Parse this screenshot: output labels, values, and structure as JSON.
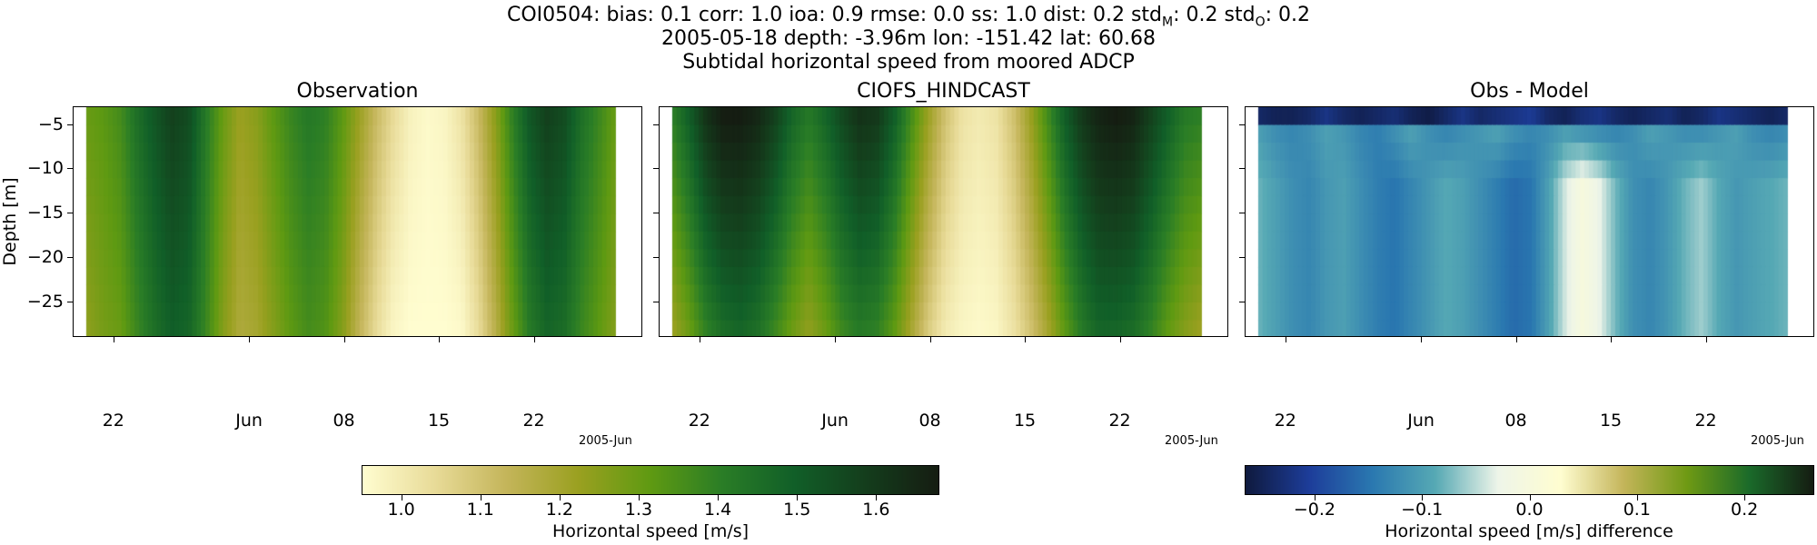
{
  "chart_data": {
    "type": "heatmap",
    "title_lines": [
      "COI0504: bias: 0.1  corr: 1.0  ioa: 0.9  rmse: 0.0  ss: 1.0  dist: 0.2  std",
      "2005-05-18 depth: -3.96m lon: -151.42 lat: 60.68",
      "Subtidal horizontal speed from moored ADCP"
    ],
    "title_subscripts": [
      "M",
      "O"
    ],
    "title_sub_values": [
      ": 0.2  std",
      ": 0.2"
    ],
    "ylabel": "Depth [m]",
    "xlim": [
      "2005-05-19",
      "2005-06-30"
    ],
    "ylim": [
      -29,
      -3
    ],
    "data_x_range": [
      "2005-05-20",
      "2005-06-28"
    ],
    "depth_bins": [
      -4,
      -6,
      -8,
      -10,
      -12,
      -14,
      -16,
      -18,
      -20,
      -22,
      -24,
      -26,
      -28
    ],
    "x_ticks": [
      {
        "date": "2005-05-22",
        "label": "22"
      },
      {
        "date": "2005-06-01",
        "label": "Jun"
      },
      {
        "date": "2005-06-08",
        "label": "08"
      },
      {
        "date": "2005-06-15",
        "label": "15"
      },
      {
        "date": "2005-06-22",
        "label": "22"
      }
    ],
    "x_offset_label": "2005-Jun",
    "y_ticks": [
      {
        "value": -5,
        "label": "−5"
      },
      {
        "value": -10,
        "label": "−10"
      },
      {
        "value": -15,
        "label": "−15"
      },
      {
        "value": -20,
        "label": "−20"
      },
      {
        "value": -25,
        "label": "−25"
      }
    ],
    "panels": [
      {
        "title": "Observation",
        "surface_speed": [
          1.3,
          1.32,
          1.36,
          1.45,
          1.52,
          1.58,
          1.55,
          1.42,
          1.3,
          1.22,
          1.25,
          1.32,
          1.38,
          1.42,
          1.4,
          1.32,
          1.22,
          1.12,
          1.04,
          0.98,
          0.96,
          0.97,
          1.02,
          1.12,
          1.25,
          1.4,
          1.52,
          1.58,
          1.55,
          1.45,
          1.38,
          1.3
        ],
        "deep_speed": [
          1.24,
          1.28,
          1.3,
          1.38,
          1.45,
          1.5,
          1.48,
          1.38,
          1.26,
          1.18,
          1.2,
          1.26,
          1.32,
          1.36,
          1.34,
          1.26,
          1.14,
          1.04,
          0.97,
          0.95,
          0.95,
          0.95,
          0.96,
          1.04,
          1.16,
          1.3,
          1.42,
          1.48,
          1.46,
          1.38,
          1.32,
          1.26
        ]
      },
      {
        "title": "CIOFS_HINDCAST",
        "surface_speed": [
          1.4,
          1.5,
          1.62,
          1.68,
          1.68,
          1.65,
          1.58,
          1.48,
          1.42,
          1.48,
          1.56,
          1.62,
          1.6,
          1.5,
          1.36,
          1.22,
          1.1,
          1.02,
          1.0,
          1.02,
          1.1,
          1.22,
          1.36,
          1.5,
          1.6,
          1.66,
          1.68,
          1.66,
          1.58,
          1.5,
          1.42,
          1.4
        ],
        "deep_speed": [
          1.22,
          1.3,
          1.4,
          1.46,
          1.48,
          1.45,
          1.38,
          1.3,
          1.24,
          1.3,
          1.38,
          1.42,
          1.4,
          1.32,
          1.2,
          1.08,
          1.0,
          0.97,
          0.96,
          0.97,
          1.02,
          1.1,
          1.2,
          1.32,
          1.42,
          1.48,
          1.48,
          1.46,
          1.4,
          1.32,
          1.26,
          1.22
        ]
      },
      {
        "title": "Obs - Model",
        "surface_diff": [
          -0.24,
          -0.25,
          -0.25,
          -0.24,
          -0.22,
          -0.24,
          -0.25,
          -0.24,
          -0.23,
          -0.25,
          -0.26,
          -0.24,
          -0.22,
          -0.24,
          -0.23,
          -0.22,
          -0.21,
          -0.24,
          -0.25,
          -0.23,
          -0.22,
          -0.24,
          -0.25,
          -0.24,
          -0.23,
          -0.25,
          -0.24,
          -0.22,
          -0.23,
          -0.24,
          -0.25,
          -0.24
        ],
        "upper_diff": [
          -0.1,
          -0.12,
          -0.13,
          -0.12,
          -0.1,
          -0.11,
          -0.13,
          -0.14,
          -0.12,
          -0.1,
          -0.12,
          -0.13,
          -0.12,
          -0.11,
          -0.1,
          -0.12,
          -0.13,
          -0.12,
          -0.1,
          -0.11,
          -0.12,
          -0.13,
          -0.12,
          -0.1,
          -0.11,
          -0.12,
          -0.12,
          -0.11,
          -0.1,
          -0.12,
          -0.13,
          -0.12
        ],
        "deep_diff": [
          -0.08,
          -0.1,
          -0.12,
          -0.13,
          -0.11,
          -0.1,
          -0.12,
          -0.14,
          -0.15,
          -0.13,
          -0.11,
          -0.09,
          -0.1,
          -0.12,
          -0.14,
          -0.16,
          -0.15,
          -0.1,
          -0.04,
          0.0,
          -0.03,
          -0.08,
          -0.12,
          -0.13,
          -0.11,
          -0.08,
          -0.06,
          -0.09,
          -0.11,
          -0.1,
          -0.09,
          -0.08
        ]
      }
    ],
    "colorbars": [
      {
        "label": "Horizontal speed [m/s]",
        "range": [
          0.95,
          1.68
        ],
        "ticks": [
          {
            "value": 1.0,
            "label": "1.0"
          },
          {
            "value": 1.1,
            "label": "1.1"
          },
          {
            "value": 1.2,
            "label": "1.2"
          },
          {
            "value": 1.3,
            "label": "1.3"
          },
          {
            "value": 1.4,
            "label": "1.4"
          },
          {
            "value": 1.5,
            "label": "1.5"
          },
          {
            "value": 1.6,
            "label": "1.6"
          }
        ]
      },
      {
        "label": "Horizontal speed [m/s] difference",
        "range": [
          -0.265,
          0.265
        ],
        "ticks": [
          {
            "value": -0.2,
            "label": "−0.2"
          },
          {
            "value": -0.1,
            "label": "−0.1"
          },
          {
            "value": 0.0,
            "label": "0.0"
          },
          {
            "value": 0.1,
            "label": "0.1"
          },
          {
            "value": 0.2,
            "label": "0.2"
          }
        ]
      }
    ],
    "colormaps": {
      "speed": [
        "#fffdd0",
        "#e8db98",
        "#c4b55a",
        "#9aa020",
        "#5f9a12",
        "#2a7d26",
        "#115f28",
        "#143d1c",
        "#151d12"
      ],
      "diff": [
        "#0f1a3f",
        "#1d3d9a",
        "#2a78b0",
        "#56a9b4",
        "#eef5e9",
        "#fffdd0",
        "#c4b55a",
        "#6f9a14",
        "#1a6a2a",
        "#151d12"
      ]
    }
  }
}
